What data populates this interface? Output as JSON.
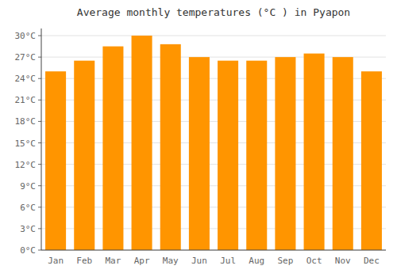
{
  "chart_data": {
    "type": "bar",
    "title": "Average monthly temperatures (°C ) in Pyapon",
    "categories": [
      "Jan",
      "Feb",
      "Mar",
      "Apr",
      "May",
      "Jun",
      "Jul",
      "Aug",
      "Sep",
      "Oct",
      "Nov",
      "Dec"
    ],
    "values": [
      25.0,
      26.5,
      28.5,
      30.0,
      28.8,
      27.0,
      26.5,
      26.5,
      27.0,
      27.5,
      27.0,
      25.0
    ],
    "color": "#FF9500",
    "ylim": [
      0,
      31
    ],
    "yticks": [
      {
        "value": 0,
        "label": "0°C"
      },
      {
        "value": 3,
        "label": "3°C"
      },
      {
        "value": 6,
        "label": "6°C"
      },
      {
        "value": 9,
        "label": "9°C"
      },
      {
        "value": 12,
        "label": "12°C"
      },
      {
        "value": 15,
        "label": "15°C"
      },
      {
        "value": 18,
        "label": "18°C"
      },
      {
        "value": 21,
        "label": "21°C"
      },
      {
        "value": 24,
        "label": "24°C"
      },
      {
        "value": 27,
        "label": "27°C"
      },
      {
        "value": 30,
        "label": "30°C"
      }
    ],
    "grid": true
  }
}
